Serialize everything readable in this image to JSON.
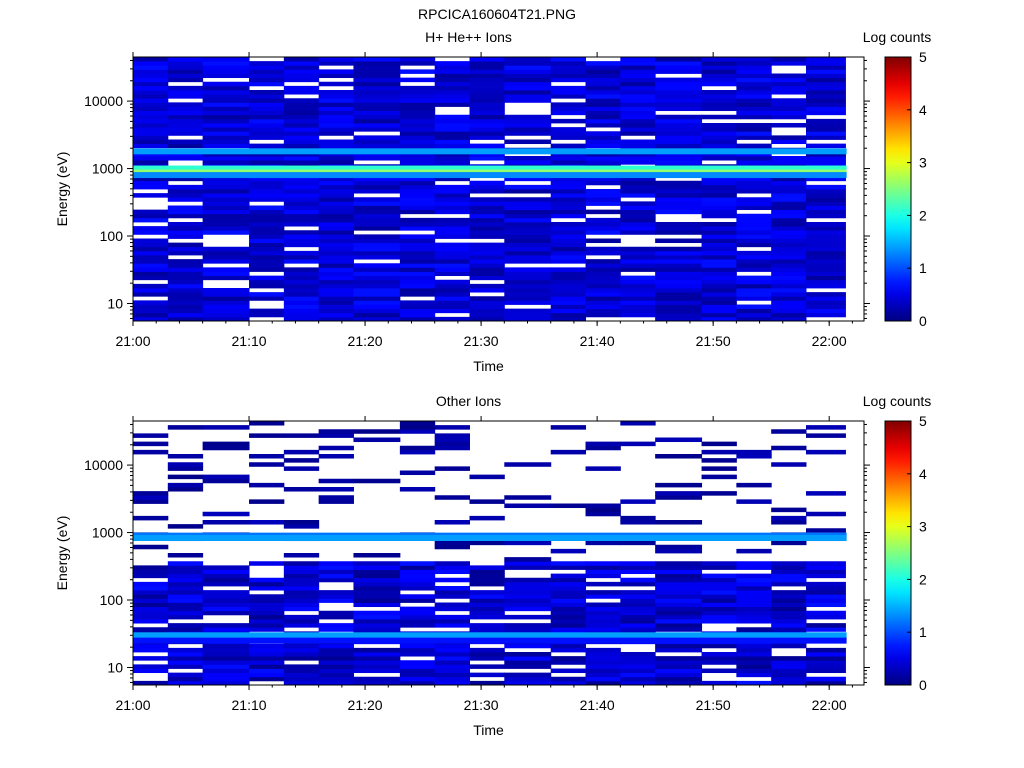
{
  "figure_title": "RPCICA160604T21.PNG",
  "chart_data": [
    {
      "type": "heatmap",
      "title": "H+ He++ Ions",
      "xlabel": "Time",
      "ylabel": "Energy (eV)",
      "x_ticks": [
        "21:00",
        "21:10",
        "21:20",
        "21:30",
        "21:40",
        "21:50",
        "22:00"
      ],
      "x_range": [
        "21:00",
        "22:03"
      ],
      "y_scale": "log",
      "y_ticks": [
        "10",
        "100",
        "1000",
        "10000"
      ],
      "y_range": [
        5.5,
        45000
      ],
      "colorbar_label": "Log counts",
      "colorbar_ticks": [
        "0",
        "1",
        "2",
        "3",
        "4",
        "5"
      ],
      "colorbar_range": [
        0,
        5
      ],
      "time_bins": [
        "21:00",
        "21:03",
        "21:06",
        "21:10",
        "21:13",
        "21:16",
        "21:19",
        "21:23",
        "21:26",
        "21:29",
        "21:32",
        "21:36",
        "21:39",
        "21:42",
        "21:45",
        "21:49",
        "21:52",
        "21:55",
        "21:58"
      ],
      "features": [
        {
          "energy_eV": 1800,
          "log_counts": 1.4
        },
        {
          "energy_eV": 1000,
          "log_counts": 2.1
        },
        {
          "energy_eV": 870,
          "log_counts": 2.6
        },
        {
          "energy_eV": 800,
          "log_counts": 1.3
        }
      ]
    },
    {
      "type": "heatmap",
      "title": "Other Ions",
      "xlabel": "Time",
      "ylabel": "Energy (eV)",
      "x_ticks": [
        "21:00",
        "21:10",
        "21:20",
        "21:30",
        "21:40",
        "21:50",
        "22:00"
      ],
      "x_range": [
        "21:00",
        "22:03"
      ],
      "y_scale": "log",
      "y_ticks": [
        "10",
        "100",
        "1000",
        "10000"
      ],
      "y_range": [
        5.5,
        45000
      ],
      "colorbar_label": "Log counts",
      "colorbar_ticks": [
        "0",
        "1",
        "2",
        "3",
        "4",
        "5"
      ],
      "colorbar_range": [
        0,
        5
      ],
      "time_bins": [
        "21:00",
        "21:03",
        "21:06",
        "21:10",
        "21:13",
        "21:16",
        "21:19",
        "21:23",
        "21:26",
        "21:29",
        "21:32",
        "21:36",
        "21:39",
        "21:42",
        "21:45",
        "21:49",
        "21:52",
        "21:55",
        "21:58"
      ],
      "features": [
        {
          "energy_eV": 900,
          "log_counts": 1.2
        },
        {
          "energy_eV": 830,
          "log_counts": 1.4
        },
        {
          "energy_eV": 30,
          "log_counts": 1.4
        },
        {
          "energy_eV": 25,
          "log_counts": 0.7
        }
      ]
    }
  ]
}
